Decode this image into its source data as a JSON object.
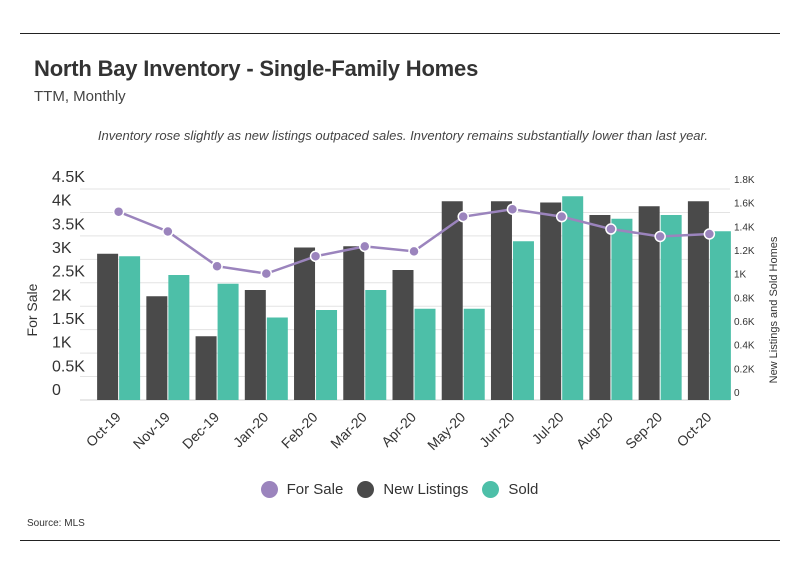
{
  "header": {
    "title": "North Bay Inventory - Single-Family Homes",
    "subtitle": "TTM, Monthly"
  },
  "annotation": "Inventory rose slightly as new listings outpaced sales. Inventory remains substantially lower than last year.",
  "footer": {
    "source": "Source:  MLS"
  },
  "colors": {
    "for_sale": "#9b84bd",
    "new_listings": "#4a4a4a",
    "sold": "#4dbfa8"
  },
  "chart_data": {
    "type": "bar",
    "categories": [
      "Oct-19",
      "Nov-19",
      "Dec-19",
      "Jan-20",
      "Feb-20",
      "Mar-20",
      "Apr-20",
      "May-20",
      "Jun-20",
      "Jul-20",
      "Aug-20",
      "Sep-20",
      "Oct-20"
    ],
    "series": [
      {
        "name": "New Listings",
        "type": "bar",
        "axis": "right",
        "values": [
          1170,
          830,
          510,
          880,
          1220,
          1230,
          1040,
          1590,
          1590,
          1580,
          1480,
          1550,
          1590
        ]
      },
      {
        "name": "Sold",
        "type": "bar",
        "axis": "right",
        "values": [
          1150,
          1000,
          930,
          660,
          720,
          880,
          730,
          730,
          1270,
          1630,
          1450,
          1480,
          1350
        ]
      },
      {
        "name": "For Sale",
        "type": "line",
        "axis": "left",
        "values": [
          3800,
          3400,
          2700,
          2550,
          2900,
          3100,
          3000,
          3700,
          3850,
          3700,
          3450,
          3300,
          3350
        ]
      }
    ],
    "left_axis": {
      "label": "For Sale",
      "ticks": [
        "4.5K",
        "4K",
        "3.5K",
        "3K",
        "2.5K",
        "2K",
        "1.5K",
        "1K",
        "0.5K",
        "0"
      ],
      "range": [
        0,
        4500
      ]
    },
    "right_axis": {
      "label": "New Listings and Sold Homes",
      "ticks": [
        "1.8K",
        "1.6K",
        "1.4K",
        "1.2K",
        "1K",
        "0.8K",
        "0.6K",
        "0.4K",
        "0.2K",
        "0"
      ],
      "range": [
        0,
        1800
      ]
    },
    "legend": {
      "position": "bottom",
      "items": [
        "For Sale",
        "New Listings",
        "Sold"
      ]
    },
    "grid": "horizontal"
  }
}
